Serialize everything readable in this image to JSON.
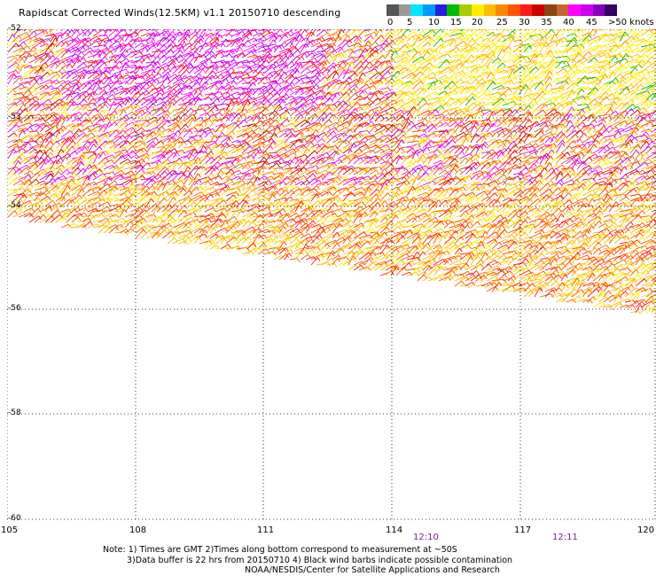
{
  "title": "Rapidscat Corrected Winds(12.5KM) v1.1 20150710 descending",
  "legend": {
    "colors": [
      "#555555",
      "#999999",
      "#00e5ff",
      "#0099ff",
      "#2222dd",
      "#00bb00",
      "#aacc00",
      "#ffee00",
      "#ffbb00",
      "#ff8800",
      "#ff5500",
      "#ff1a1a",
      "#cc0000",
      "#8b4513",
      "#c86432",
      "#ff00ff",
      "#cc00ee",
      "#8800bb",
      "#330066"
    ],
    "labels": [
      {
        "text": "0"
      },
      {
        "text": "5"
      },
      {
        "text": "10"
      },
      {
        "text": "15"
      },
      {
        "text": "20"
      },
      {
        "text": "25"
      },
      {
        "text": "30"
      },
      {
        "text": "35"
      },
      {
        "text": "40"
      },
      {
        "text": "45"
      },
      {
        "text": ">50 knots"
      }
    ]
  },
  "map": {
    "lat_labels": [
      "-52",
      "-53",
      "-54",
      "-56",
      "-58",
      "-60"
    ],
    "lon_labels": [
      "105",
      "108",
      "111",
      "114",
      "117",
      "120"
    ],
    "times": [
      "12:10",
      "12:11"
    ],
    "wind_colors": [
      "#ff1a1a",
      "#ff5500",
      "#ff8800",
      "#ffbb00",
      "#ffee00",
      "#cc0000",
      "#c86432",
      "#ff00ff",
      "#cc00ee"
    ]
  },
  "notes": {
    "line1": "Note: 1) Times are GMT 2)Times along bottom correspond to measurement at ~50S",
    "line2": "3)Data buffer is 22 hrs from 20150710 4) Black wind barbs indicate possible contamination",
    "line3": "NOAA/NESDIS/Center for Satellite Applications and Research"
  }
}
